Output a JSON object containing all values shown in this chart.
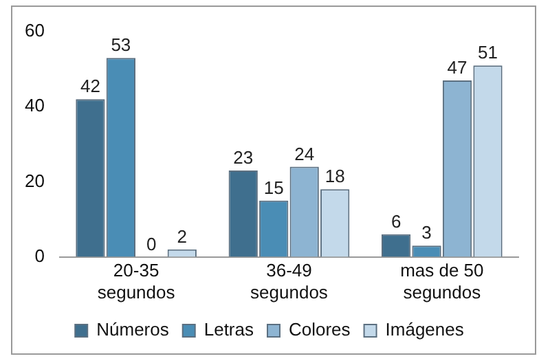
{
  "chart_data": {
    "type": "bar",
    "categories": [
      "20-35 segundos",
      "36-49 segundos",
      "mas de 50 segundos"
    ],
    "series": [
      {
        "name": "Números",
        "color": "#3f6f8e",
        "values": [
          42,
          23,
          6
        ]
      },
      {
        "name": "Letras",
        "color": "#4a8db5",
        "values": [
          53,
          15,
          3
        ]
      },
      {
        "name": "Colores",
        "color": "#8db4d2",
        "values": [
          0,
          24,
          47
        ]
      },
      {
        "name": "Imágenes",
        "color": "#c3d9ea",
        "values": [
          2,
          18,
          51
        ]
      }
    ],
    "ylim": [
      0,
      60
    ],
    "yticks": [
      0,
      20,
      40,
      60
    ],
    "grid": false,
    "legend": "bottom",
    "data_labels": true
  }
}
